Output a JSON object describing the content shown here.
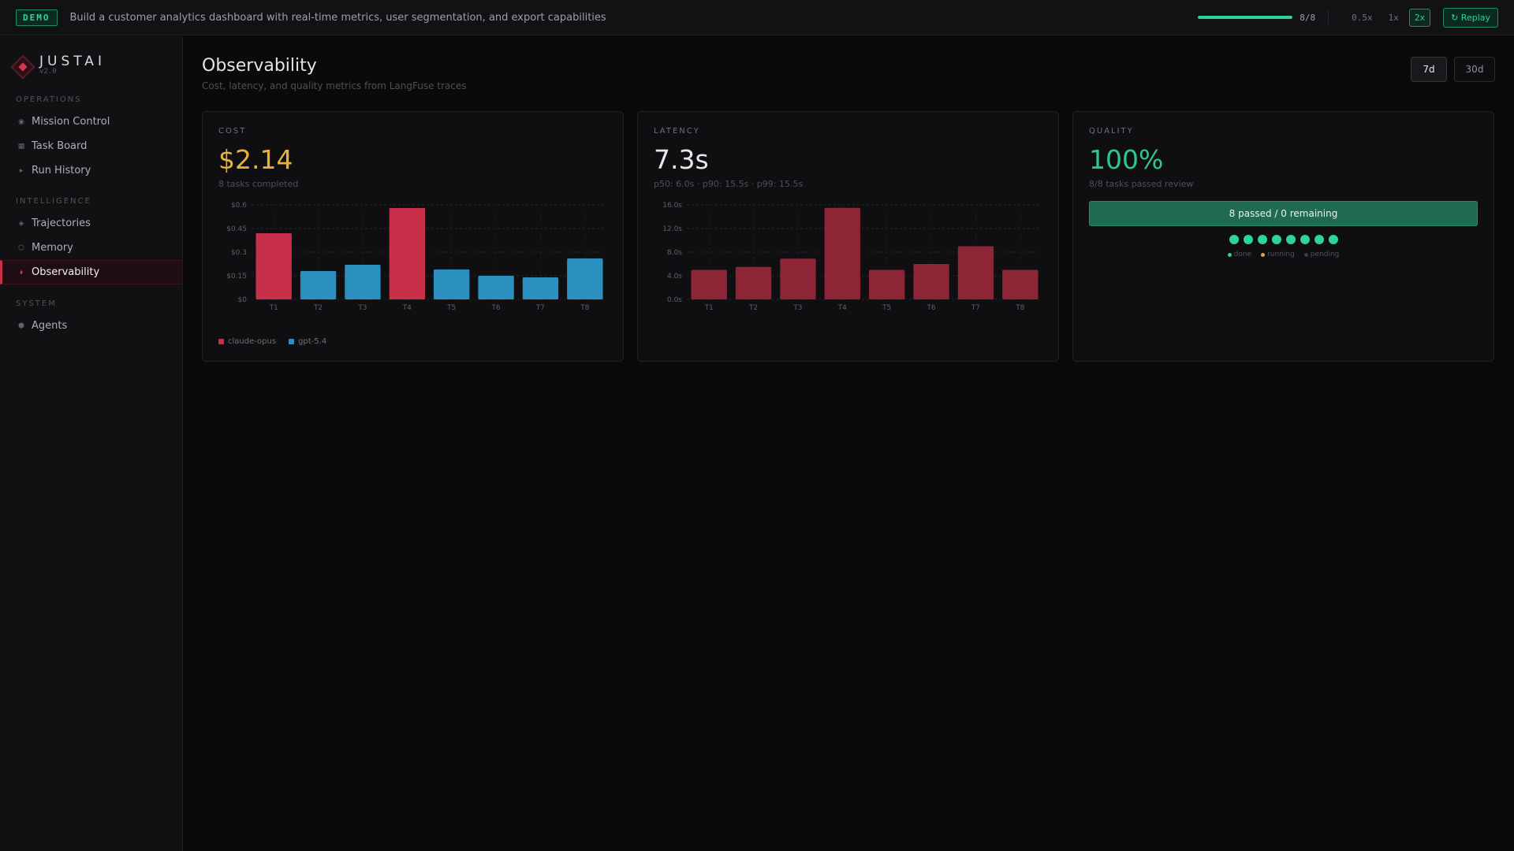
{
  "topbar": {
    "badge": "DEMO",
    "prompt": "Build a customer analytics dashboard with real-time metrics, user segmentation, and export capabilities",
    "progress": 1.0,
    "progress_text": "8/8",
    "speeds": [
      "0.5x",
      "1x",
      "2x"
    ],
    "active_speed": "2x",
    "replay_label": "↻ Replay"
  },
  "sidebar": {
    "logo_name": "JUSTAI",
    "logo_version": "v2.0",
    "sections": [
      {
        "label": "OPERATIONS",
        "items": [
          {
            "label": "Mission Control",
            "icon": "◉"
          },
          {
            "label": "Task Board",
            "icon": "▦"
          },
          {
            "label": "Run History",
            "icon": "▸"
          }
        ]
      },
      {
        "label": "INTELLIGENCE",
        "items": [
          {
            "label": "Trajectories",
            "icon": "◈"
          },
          {
            "label": "Memory",
            "icon": "⬡"
          },
          {
            "label": "Observability",
            "icon": "⬧"
          }
        ]
      },
      {
        "label": "SYSTEM",
        "items": [
          {
            "label": "Agents",
            "icon": "⬢"
          }
        ]
      }
    ],
    "active_item": "Observability"
  },
  "header": {
    "title": "Observability",
    "subtitle": "Cost, latency, and quality metrics from LangFuse traces",
    "ranges": [
      "7d",
      "30d"
    ],
    "active_range": "7d"
  },
  "cost": {
    "label": "COST",
    "value": "$2.14",
    "sub": "8 tasks completed",
    "value_color": "#e9b13b"
  },
  "latency": {
    "label": "LATENCY",
    "value": "7.3s",
    "sub": "p50: 6.0s · p90: 15.5s · p99: 15.5s",
    "value_color": "#e6e8ec"
  },
  "quality": {
    "label": "QUALITY",
    "value": "100%",
    "sub": "8/8 tasks passed review",
    "value_color": "#2fc790",
    "bar_text": "8 passed / 0 remaining",
    "passed": 8,
    "total": 8,
    "status_legend": [
      {
        "label": "done",
        "color": "#2fd29a"
      },
      {
        "label": "running",
        "color": "#e9a23b"
      },
      {
        "label": "pending",
        "color": "#3a3d44"
      }
    ]
  },
  "chart_data": [
    {
      "type": "bar",
      "title": "",
      "categories": [
        "T1",
        "T2",
        "T3",
        "T4",
        "T5",
        "T6",
        "T7",
        "T8"
      ],
      "values": [
        0.42,
        0.18,
        0.22,
        0.58,
        0.19,
        0.15,
        0.14,
        0.26
      ],
      "bar_series": [
        "claude-opus",
        "gpt-5.4",
        "gpt-5.4",
        "claude-opus",
        "gpt-5.4",
        "gpt-5.4",
        "gpt-5.4",
        "gpt-5.4"
      ],
      "series": [
        {
          "name": "claude-opus",
          "color": "#c8304a"
        },
        {
          "name": "gpt-5.4",
          "color": "#2b8fc0"
        }
      ],
      "yticks": [
        "$0",
        "$0.15",
        "$0.3",
        "$0.45",
        "$0.6"
      ],
      "ylim": [
        0,
        0.6
      ],
      "grid": true,
      "legend": "bottom-left"
    },
    {
      "type": "bar",
      "title": "",
      "categories": [
        "T1",
        "T2",
        "T3",
        "T4",
        "T5",
        "T6",
        "T7",
        "T8"
      ],
      "values": [
        5.0,
        5.5,
        6.9,
        15.5,
        5.0,
        6.0,
        9.0,
        5.0
      ],
      "color": "#8e2537",
      "yticks": [
        "0.0s",
        "4.0s",
        "8.0s",
        "12.0s",
        "16.0s"
      ],
      "ylim": [
        0,
        16
      ],
      "grid": true
    }
  ]
}
